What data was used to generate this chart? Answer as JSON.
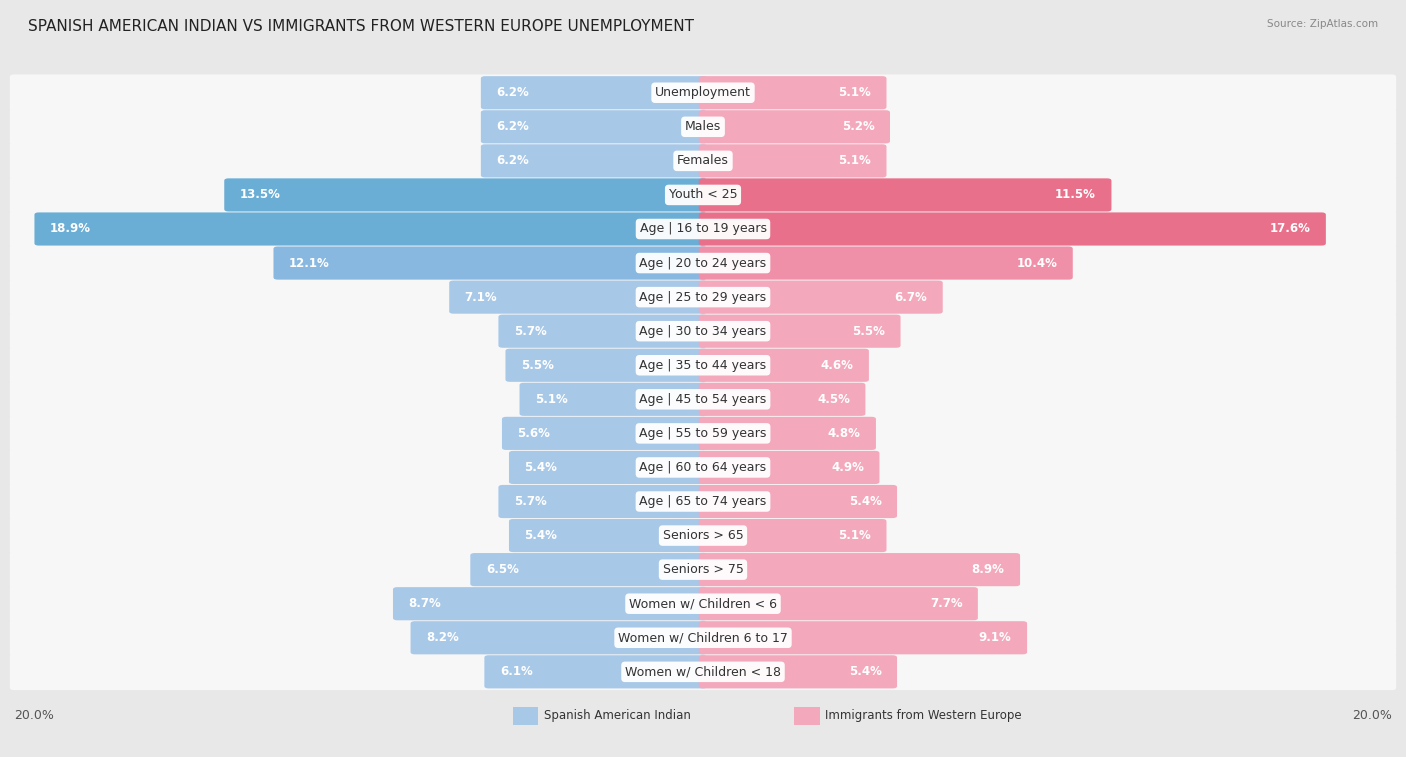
{
  "title": "SPANISH AMERICAN INDIAN VS IMMIGRANTS FROM WESTERN EUROPE UNEMPLOYMENT",
  "source": "Source: ZipAtlas.com",
  "categories": [
    "Unemployment",
    "Males",
    "Females",
    "Youth < 25",
    "Age | 16 to 19 years",
    "Age | 20 to 24 years",
    "Age | 25 to 29 years",
    "Age | 30 to 34 years",
    "Age | 35 to 44 years",
    "Age | 45 to 54 years",
    "Age | 55 to 59 years",
    "Age | 60 to 64 years",
    "Age | 65 to 74 years",
    "Seniors > 65",
    "Seniors > 75",
    "Women w/ Children < 6",
    "Women w/ Children 6 to 17",
    "Women w/ Children < 18"
  ],
  "left_values": [
    6.2,
    6.2,
    6.2,
    13.5,
    18.9,
    12.1,
    7.1,
    5.7,
    5.5,
    5.1,
    5.6,
    5.4,
    5.7,
    5.4,
    6.5,
    8.7,
    8.2,
    6.1
  ],
  "right_values": [
    5.1,
    5.2,
    5.1,
    11.5,
    17.6,
    10.4,
    6.7,
    5.5,
    4.6,
    4.5,
    4.8,
    4.9,
    5.4,
    5.1,
    8.9,
    7.7,
    9.1,
    5.4
  ],
  "left_color_normal": "#a8c8e8",
  "left_color_medium": "#88b8e0",
  "left_color_strong": "#6aaed6",
  "right_color_normal": "#f4a8bc",
  "right_color_medium": "#f090a8",
  "right_color_strong": "#e8708a",
  "label_text_color_normal": "#444444",
  "label_text_color_highlight": "#ffffff",
  "left_label": "Spanish American Indian",
  "right_label": "Immigrants from Western Europe",
  "axis_max": 20.0,
  "background_color": "#e8e8e8",
  "row_bg_color": "#f0f0f0",
  "row_bg_alt_color": "#e8e8e8",
  "title_fontsize": 11,
  "label_fontsize": 9,
  "value_fontsize": 8.5,
  "axis_label_fontsize": 9,
  "strong_rows": [
    3,
    4
  ],
  "medium_rows": [
    5
  ],
  "value_inside_threshold": 0.055
}
